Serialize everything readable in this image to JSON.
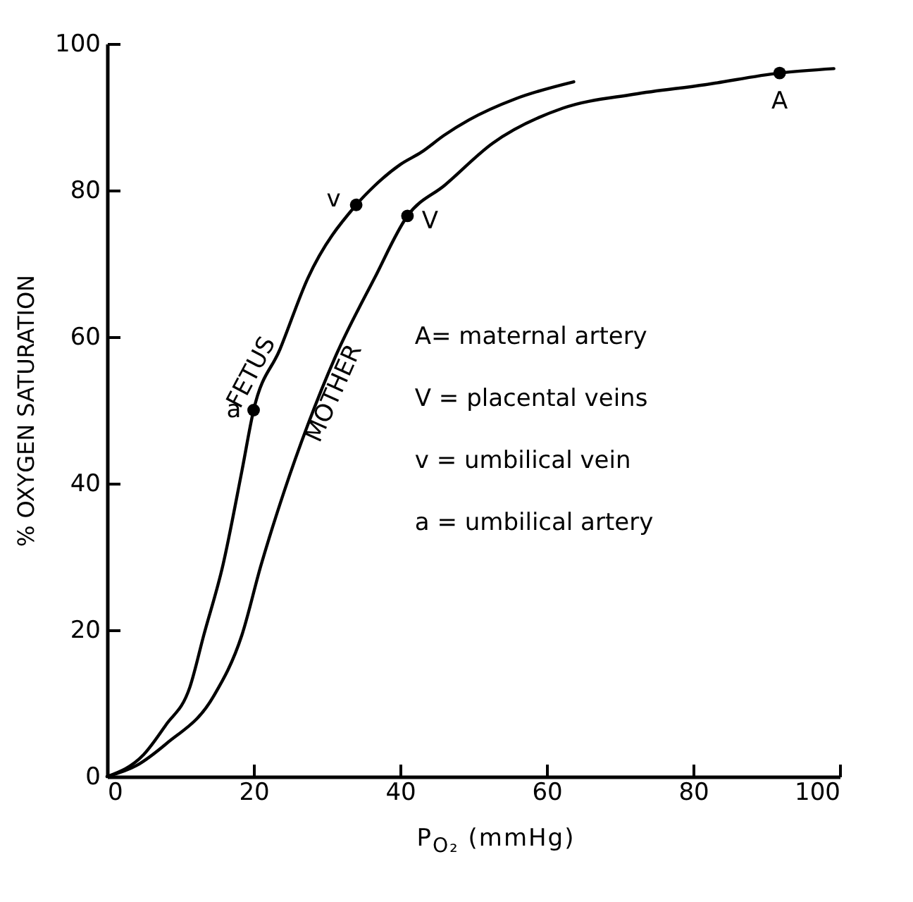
{
  "chart_data": {
    "type": "line",
    "xlabel": "P$_{O₂}$ (mmHg)",
    "ylabel": "% OXYGEN SATURATION",
    "xlim": [
      0,
      100
    ],
    "ylim": [
      0,
      100
    ],
    "xticks": [
      0,
      20,
      40,
      60,
      80,
      100
    ],
    "yticks": [
      0,
      20,
      40,
      60,
      80,
      100
    ],
    "grid": false,
    "line_style": "solid",
    "series": [
      {
        "name": "FETUS",
        "color": "#000000",
        "marker": "none",
        "x": [
          0,
          5,
          8,
          11.3,
          13.2,
          15.8,
          18.4,
          20,
          23.6,
          27.4,
          34,
          36.5,
          40,
          42.9,
          46,
          49.4,
          55.8,
          63.7
        ],
        "values": [
          0,
          3,
          7,
          12.2,
          19.3,
          28.8,
          41.7,
          50,
          58.3,
          68,
          78,
          80.6,
          83.5,
          85.2,
          87.5,
          89.6,
          92.5,
          94.8
        ]
      },
      {
        "name": "MOTHER",
        "color": "#000000",
        "marker": "none",
        "x": [
          0,
          4,
          8.1,
          14.5,
          18.4,
          21,
          24.2,
          27.4,
          31.3,
          36.5,
          41,
          46.1,
          52.6,
          62.2,
          71.9,
          81.6,
          91.8,
          99.2
        ],
        "values": [
          0,
          1.5,
          4.5,
          10.9,
          19.3,
          28.8,
          39,
          48,
          57.6,
          68,
          76.5,
          80.7,
          86.4,
          91.2,
          93.1,
          94.4,
          96,
          96.6
        ]
      },
      {
        "type": "scatter",
        "color": "#000000",
        "marker": "circle",
        "x": [
          20,
          34,
          41,
          91.8
        ],
        "values": [
          50,
          78,
          76.5,
          96
        ]
      }
    ],
    "annotations": [
      {
        "text": "a",
        "x": 20,
        "y": 50
      },
      {
        "text": "v",
        "x": 34,
        "y": 78
      },
      {
        "text": "V",
        "x": 41,
        "y": 76.5
      },
      {
        "text": "A",
        "x": 91.8,
        "y": 96
      },
      "A= maternal artery",
      "V = placental veins",
      "v = umbilical vein",
      "a = umbilical artery"
    ]
  }
}
